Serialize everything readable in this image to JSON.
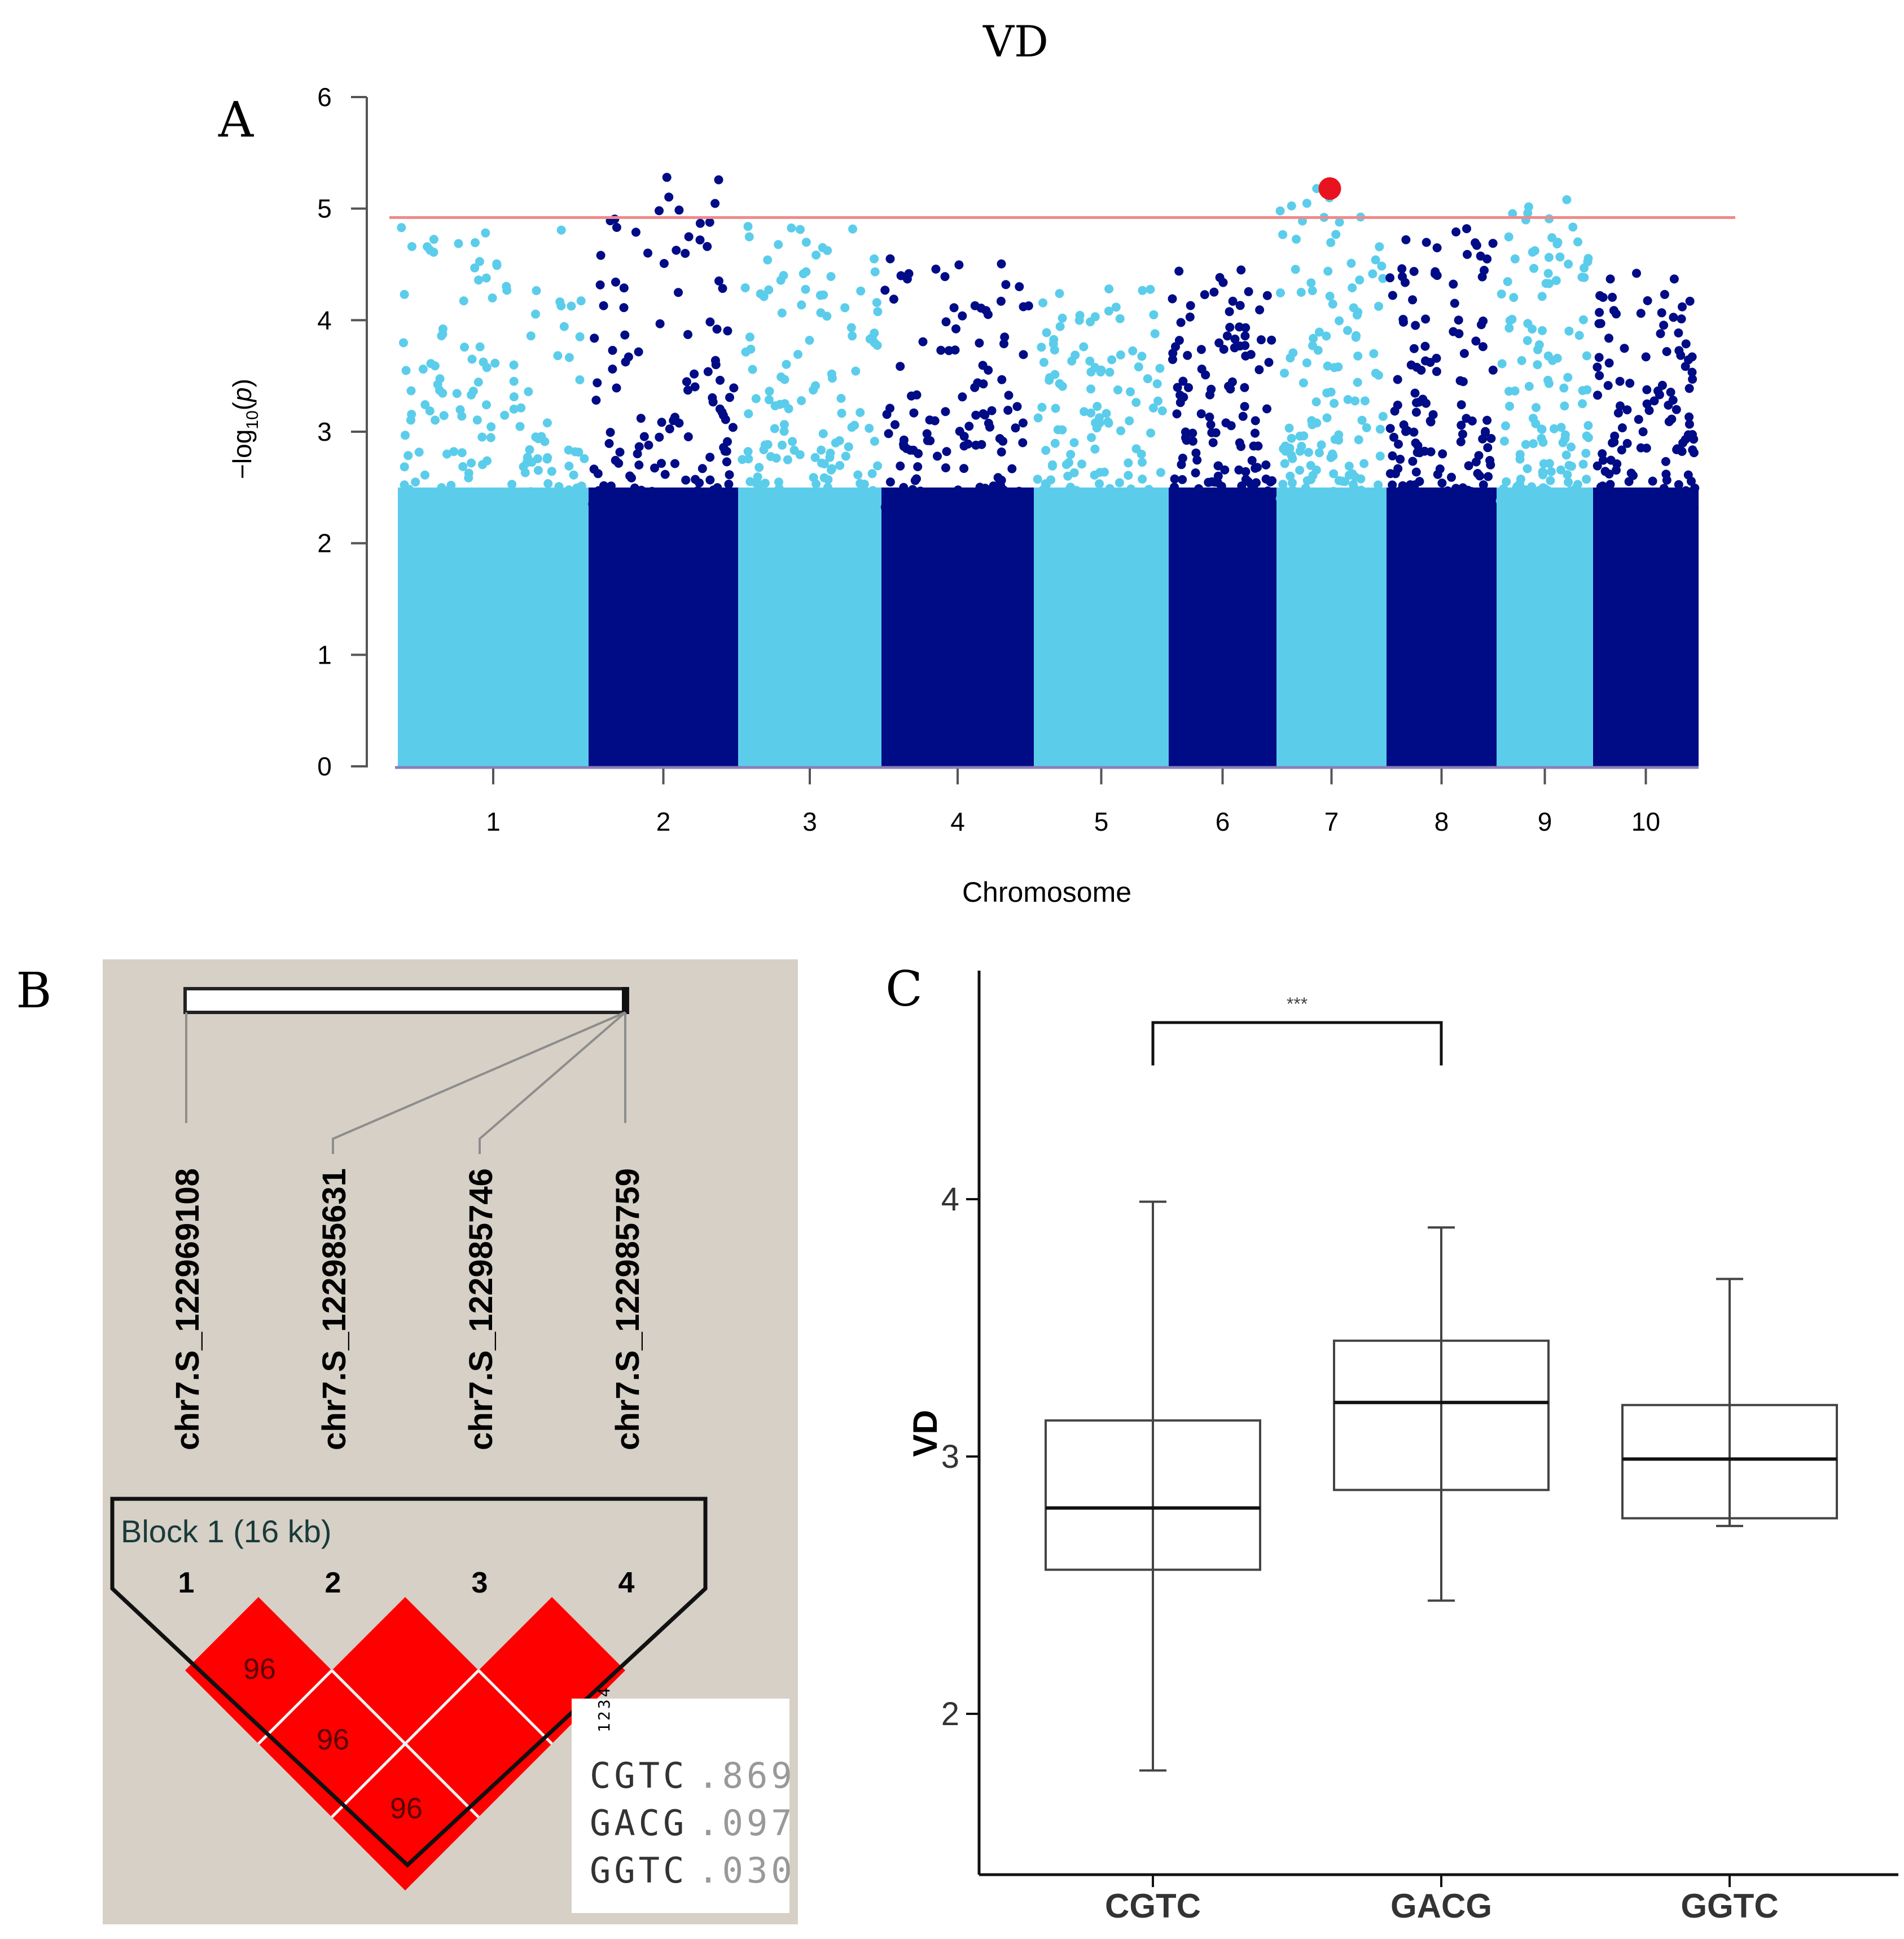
{
  "panel_labels": {
    "a": "A",
    "b": "B",
    "c": "C"
  },
  "colors": {
    "chrom_light": "#5bcdeb",
    "chrom_dark": "#000b86",
    "threshold": "#f08a8a",
    "top_snp": "#e8131f",
    "ld_block": "#ff0000",
    "ld_bg": "#d6d0c7"
  },
  "chart_data": [
    {
      "type": "scatter",
      "subtype": "manhattan",
      "title": "VD",
      "xlabel": "Chromosome",
      "ylabel": "-log10(p)",
      "ylim": [
        0,
        6
      ],
      "yticks": [
        0,
        1,
        2,
        3,
        4,
        5,
        6
      ],
      "chromosomes": [
        "1",
        "2",
        "3",
        "4",
        "5",
        "6",
        "7",
        "8",
        "9",
        "10"
      ],
      "threshold": 4.92,
      "chromosome_peaks": [
        4.83,
        5.28,
        4.84,
        4.55,
        4.28,
        4.45,
        5.18,
        4.82,
        5.08,
        4.42
      ],
      "top_snp": {
        "chromosome": "7",
        "value": 5.18
      },
      "legend": "none"
    },
    {
      "type": "table",
      "subtype": "ld_block",
      "snps": [
        "chr7.S_122969108",
        "chr7.S_122985631",
        "chr7.S_122985746",
        "chr7.S_122985759"
      ],
      "block_label": "Block 1 (16 kb)",
      "snp_indices": [
        "1",
        "2",
        "3",
        "4"
      ],
      "pairwise_labels": [
        "96",
        "96",
        "96"
      ],
      "haplotype_header": "1234",
      "haplotypes": [
        {
          "allele": "CGTC",
          "freq": ".869"
        },
        {
          "allele": "GACG",
          "freq": ".097"
        },
        {
          "allele": "GGTC",
          "freq": ".030"
        }
      ]
    },
    {
      "type": "box",
      "ylabel": "VD",
      "categories": [
        "CGTC",
        "GACG",
        "GGTC"
      ],
      "yticks": [
        2,
        3,
        4
      ],
      "ylim": [
        1.35,
        4.85
      ],
      "boxes": [
        {
          "name": "CGTC",
          "min": 1.78,
          "q1": 2.56,
          "median": 2.8,
          "q3": 3.14,
          "max": 3.99
        },
        {
          "name": "GACG",
          "min": 2.44,
          "q1": 2.87,
          "median": 3.21,
          "q3": 3.45,
          "max": 3.89
        },
        {
          "name": "GGTC",
          "min": 2.73,
          "q1": 2.76,
          "median": 2.99,
          "q3": 3.2,
          "max": 3.69
        }
      ],
      "significance": {
        "from": "CGTC",
        "to": "GACG",
        "label": "***"
      }
    }
  ]
}
